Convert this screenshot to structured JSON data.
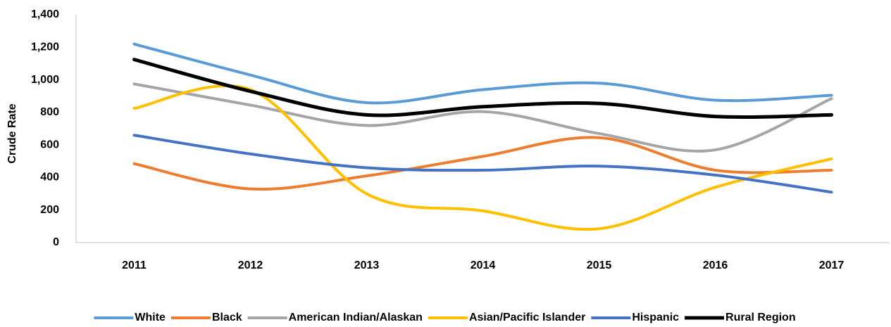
{
  "chart_data": {
    "type": "line",
    "y_label": "Crude Rate",
    "categories": [
      "2011",
      "2012",
      "2013",
      "2014",
      "2015",
      "2016",
      "2017"
    ],
    "series": [
      {
        "name": "White",
        "color": "#5b9bd5",
        "values": [
          1220,
          1030,
          860,
          940,
          980,
          875,
          905
        ]
      },
      {
        "name": "Black",
        "color": "#ed7d31",
        "values": [
          485,
          330,
          410,
          530,
          645,
          445,
          445
        ]
      },
      {
        "name": "American Indian/Alaskan",
        "color": "#a5a5a5",
        "values": [
          975,
          845,
          720,
          805,
          670,
          570,
          885
        ]
      },
      {
        "name": "Asian/Pacific Islander",
        "color": "#ffc000",
        "values": [
          825,
          940,
          300,
          195,
          85,
          340,
          515
        ]
      },
      {
        "name": "Hispanic",
        "color": "#4472c4",
        "values": [
          660,
          545,
          460,
          445,
          470,
          415,
          310
        ]
      },
      {
        "name": "Rural Region",
        "color": "#000000",
        "values": [
          1125,
          930,
          785,
          835,
          855,
          775,
          785
        ]
      }
    ],
    "ylim": [
      0,
      1400
    ],
    "yticks": [
      0,
      200,
      400,
      600,
      800,
      {
        "value": 1000,
        "label": "1,000"
      },
      {
        "value": 1200,
        "label": "1,200"
      },
      {
        "value": 1400,
        "label": "1,400"
      }
    ],
    "grid": false,
    "smooth": true,
    "legend": "bottom"
  }
}
